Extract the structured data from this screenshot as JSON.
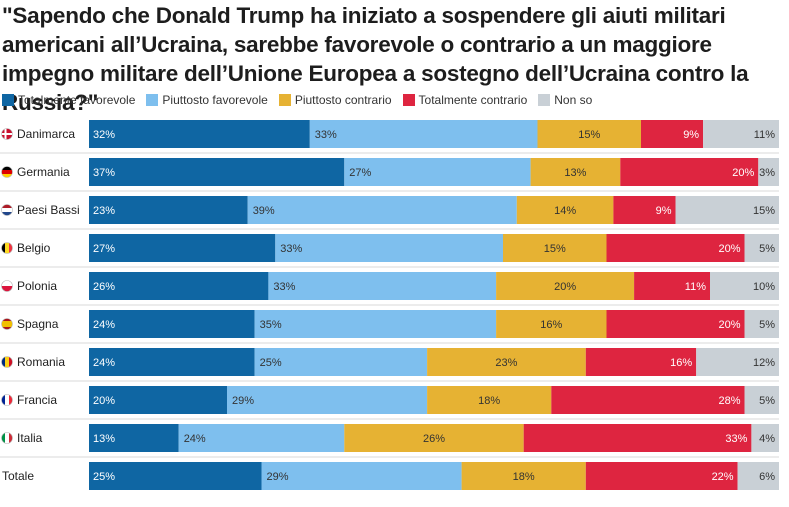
{
  "title": "\"Sapendo che Donald Trump ha iniziato a sospendere gli aiuti militari americani all’Ucraina, sarebbe favorevole o contrario a un maggiore impegno militare dell’Unione Europea a sostegno dell’Ucraina contro la Russia?\"",
  "colors": {
    "Totalmente favorevole": "#0f66a3",
    "Piuttosto favorevole": "#7ebfee",
    "Piuttosto contrario": "#e6b233",
    "Totalmente contrario": "#de2540",
    "Non so": "#c9d0d6"
  },
  "chart_data": {
    "type": "bar",
    "orientation": "horizontal-stacked-100",
    "title": "\"Sapendo che Donald Trump ha iniziato a sospendere gli aiuti militari americani all’Ucraina, sarebbe favorevole o contrario a un maggiore impegno militare dell’Unione Europea a sostegno dell’Ucraina contro la Russia?\"",
    "legend_position": "top-left",
    "unit": "%",
    "categories": [
      "Danimarca",
      "Germania",
      "Paesi Bassi",
      "Belgio",
      "Polonia",
      "Spagna",
      "Romania",
      "Francia",
      "Italia",
      "Totale"
    ],
    "flags": [
      "denmark-flag-icon",
      "germany-flag-icon",
      "netherlands-flag-icon",
      "belgium-flag-icon",
      "poland-flag-icon",
      "spain-flag-icon",
      "romania-flag-icon",
      "france-flag-icon",
      "italy-flag-icon",
      ""
    ],
    "series": [
      {
        "name": "Totalmente favorevole",
        "values": [
          32,
          37,
          23,
          27,
          26,
          24,
          24,
          20,
          13,
          25
        ]
      },
      {
        "name": "Piuttosto favorevole",
        "values": [
          33,
          27,
          39,
          33,
          33,
          35,
          25,
          29,
          24,
          29
        ]
      },
      {
        "name": "Piuttosto contrario",
        "values": [
          15,
          13,
          14,
          15,
          20,
          16,
          23,
          18,
          26,
          18
        ]
      },
      {
        "name": "Totalmente contrario",
        "values": [
          9,
          20,
          9,
          20,
          11,
          20,
          16,
          28,
          33,
          22
        ]
      },
      {
        "name": "Non so",
        "values": [
          11,
          3,
          15,
          5,
          10,
          5,
          12,
          5,
          4,
          6
        ]
      }
    ]
  }
}
